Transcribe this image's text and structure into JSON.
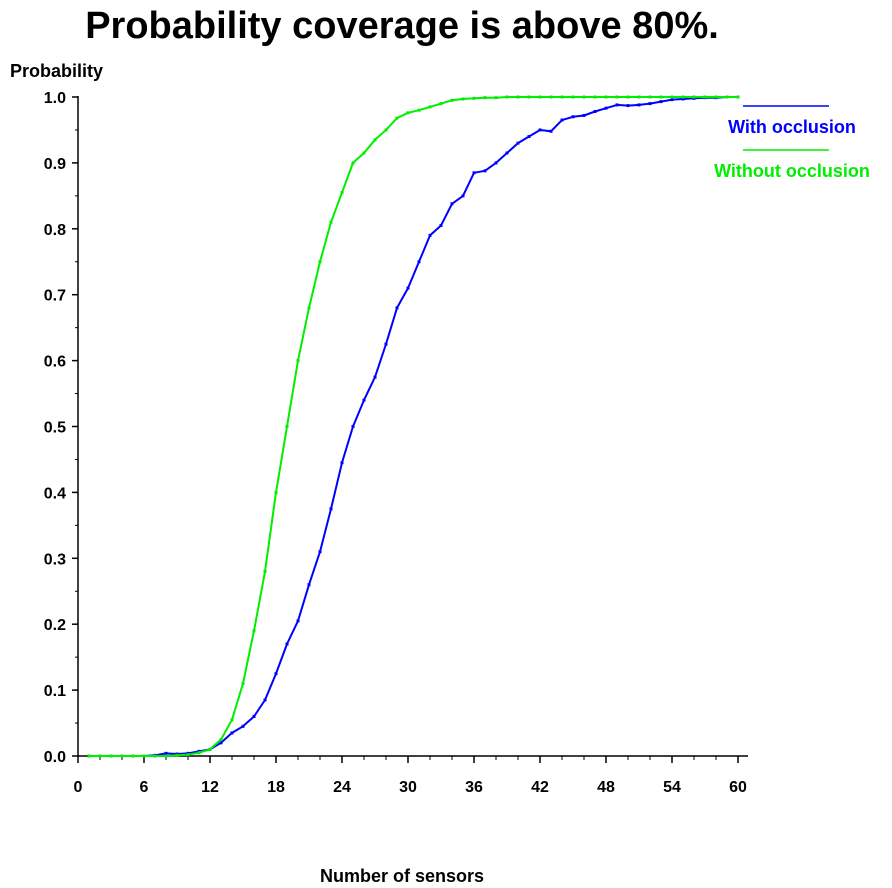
{
  "chart_data": {
    "type": "line",
    "title": "Probability coverage is above 80%.",
    "xlabel": "Number of sensors",
    "ylabel": "Probability",
    "xlim": [
      0,
      60
    ],
    "ylim": [
      0.0,
      1.0
    ],
    "xticks": [
      "0",
      "6",
      "12",
      "18",
      "24",
      "30",
      "36",
      "42",
      "48",
      "54",
      "60"
    ],
    "yticks": [
      "0.0",
      "0.1",
      "0.2",
      "0.3",
      "0.4",
      "0.5",
      "0.6",
      "0.7",
      "0.8",
      "0.9",
      "1.0"
    ],
    "grid": false,
    "legend_position": "top-right",
    "series": [
      {
        "name": "With occlusion",
        "color": "#0000ff",
        "x": [
          1,
          2,
          3,
          4,
          5,
          6,
          7,
          8,
          9,
          10,
          11,
          12,
          13,
          14,
          15,
          16,
          17,
          18,
          19,
          20,
          21,
          22,
          23,
          24,
          25,
          26,
          27,
          28,
          29,
          30,
          31,
          32,
          33,
          34,
          35,
          36,
          37,
          38,
          39,
          40,
          41,
          42,
          43,
          44,
          45,
          46,
          47,
          48,
          49,
          50,
          51,
          52,
          53,
          54,
          55,
          56,
          57,
          58,
          59,
          60
        ],
        "values": [
          0.0,
          0.0,
          0.0,
          0.0,
          0.0,
          0.0,
          0.001,
          0.004,
          0.003,
          0.004,
          0.007,
          0.01,
          0.02,
          0.035,
          0.045,
          0.06,
          0.085,
          0.125,
          0.17,
          0.205,
          0.26,
          0.31,
          0.375,
          0.445,
          0.5,
          0.54,
          0.575,
          0.625,
          0.68,
          0.71,
          0.75,
          0.79,
          0.805,
          0.838,
          0.85,
          0.885,
          0.888,
          0.9,
          0.915,
          0.93,
          0.94,
          0.95,
          0.948,
          0.965,
          0.97,
          0.972,
          0.978,
          0.983,
          0.988,
          0.987,
          0.988,
          0.99,
          0.993,
          0.996,
          0.997,
          0.998,
          0.999,
          0.999,
          1.0,
          1.0
        ]
      },
      {
        "name": "Without occlusion",
        "color": "#00ee00",
        "x": [
          1,
          2,
          3,
          4,
          5,
          6,
          7,
          8,
          9,
          10,
          11,
          12,
          13,
          14,
          15,
          16,
          17,
          18,
          19,
          20,
          21,
          22,
          23,
          24,
          25,
          26,
          27,
          28,
          29,
          30,
          31,
          32,
          33,
          34,
          35,
          36,
          37,
          38,
          39,
          40,
          41,
          42,
          43,
          44,
          45,
          46,
          47,
          48,
          49,
          50,
          51,
          52,
          53,
          54,
          55,
          56,
          57,
          58,
          59,
          60
        ],
        "values": [
          0.0,
          0.0,
          0.0,
          0.0,
          0.0,
          0.0,
          0.0,
          0.0,
          0.001,
          0.002,
          0.005,
          0.01,
          0.025,
          0.055,
          0.11,
          0.19,
          0.28,
          0.4,
          0.5,
          0.6,
          0.68,
          0.75,
          0.81,
          0.855,
          0.9,
          0.915,
          0.935,
          0.95,
          0.968,
          0.976,
          0.98,
          0.985,
          0.99,
          0.995,
          0.997,
          0.998,
          0.999,
          0.999,
          1.0,
          1.0,
          1.0,
          1.0,
          1.0,
          1.0,
          1.0,
          1.0,
          1.0,
          1.0,
          1.0,
          1.0,
          1.0,
          1.0,
          1.0,
          1.0,
          1.0,
          1.0,
          1.0,
          1.0,
          1.0,
          1.0
        ]
      }
    ]
  }
}
